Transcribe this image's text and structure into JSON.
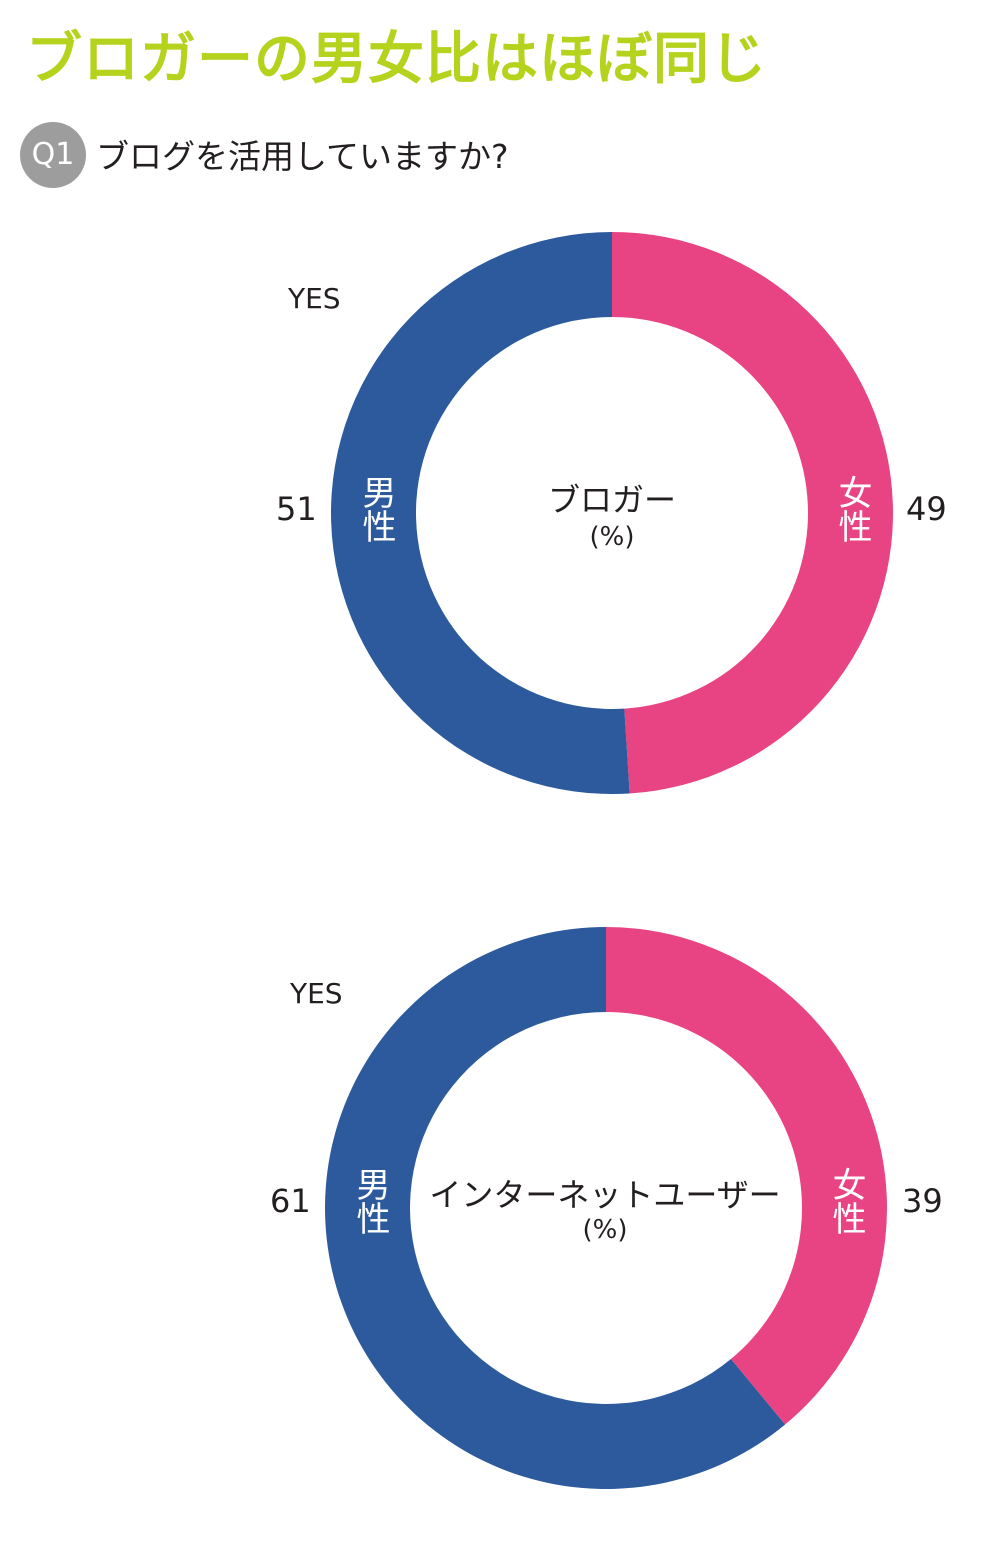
{
  "header": {
    "title": "ブロガーの男女比はほぼ同じ",
    "title_color": "#b5d21d"
  },
  "question": {
    "badge": "Q1",
    "text": "ブログを活用していますか?"
  },
  "colors": {
    "male": "#2c5a9c",
    "female": "#e84484"
  },
  "chart_data": [
    {
      "type": "pie",
      "donut": true,
      "title": "ブロガー",
      "unit": "(%)",
      "annotation": "YES",
      "slices": [
        {
          "name": "男性",
          "value": 51
        },
        {
          "name": "女性",
          "value": 49
        }
      ]
    },
    {
      "type": "pie",
      "donut": true,
      "title": "インターネットユーザー",
      "unit": "(%)",
      "annotation": "YES",
      "slices": [
        {
          "name": "男性",
          "value": 61
        },
        {
          "name": "女性",
          "value": 39
        }
      ]
    }
  ]
}
